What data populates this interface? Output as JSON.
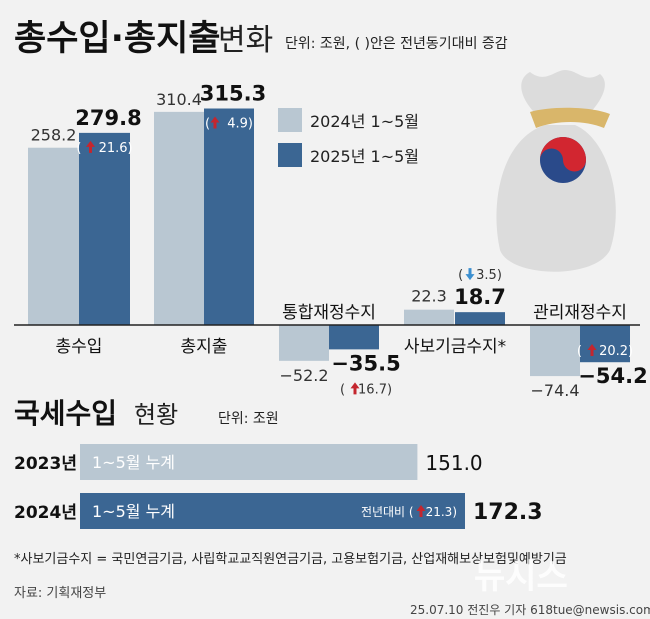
{
  "header": {
    "title": "총수입·총지출",
    "title_suffix": "변화",
    "unit_note": "단위: 조원, ( )안은 전년동기대비 증감"
  },
  "legend": [
    {
      "label": "2024년 1~5월",
      "color": "#b9c7d2"
    },
    {
      "label": "2025년 1~5월",
      "color": "#3b6693"
    }
  ],
  "colors": {
    "prev": "#b9c7d2",
    "curr": "#3b6693",
    "up_arrow": "#c4262e",
    "down_arrow": "#3b8fd0",
    "background": "#f2f2f2"
  },
  "chart_data": [
    {
      "type": "bar",
      "title": "총수입·총지출 변화",
      "unit": "조원",
      "categories": [
        "총수입",
        "총지출",
        "통합재정수지",
        "사보기금수지*",
        "관리재정수지"
      ],
      "series": [
        {
          "name": "2024년 1~5월",
          "values": [
            258.2,
            310.4,
            -52.2,
            22.3,
            -74.4
          ],
          "labels": [
            "258.2",
            "310.4",
            "−52.2",
            "22.3",
            "−74.4"
          ]
        },
        {
          "name": "2025년 1~5월",
          "values": [
            279.8,
            315.3,
            -35.5,
            18.7,
            -54.2
          ],
          "labels": [
            "279.8",
            "315.3",
            "−35.5",
            "18.7",
            "−54.2"
          ]
        }
      ],
      "changes": [
        {
          "arrow": "up",
          "value": "21.6"
        },
        {
          "arrow": "up",
          "value": "4.9"
        },
        {
          "arrow": "up",
          "value": "16.7"
        },
        {
          "arrow": "down",
          "value": "3.5"
        },
        {
          "arrow": "up",
          "value": "20.2"
        }
      ]
    },
    {
      "type": "bar",
      "orientation": "horizontal",
      "title": "국세수입 현황",
      "unit": "조원",
      "categories": [
        "2023년",
        "2024년"
      ],
      "bar_labels": [
        "1~5월 누계",
        "1~5월 누계"
      ],
      "values": [
        151.0,
        172.3
      ],
      "value_labels": [
        "151.0",
        "172.3"
      ],
      "change": {
        "label": "전년대비",
        "arrow": "up",
        "value": "21.3"
      }
    }
  ],
  "section2": {
    "title": "국세수입",
    "title_suffix": "현황",
    "unit": "단위: 조원"
  },
  "footnote": "*사보기금수지 = 국민연금기금, 사립학교교직원연금기금, 고용보험기금, 산업재해보상보험및예방기금",
  "source": "자료: 기획재정부",
  "credit": "25.07.10 전진우 기자 618tue@newsis.com",
  "watermark": "뉴시스"
}
